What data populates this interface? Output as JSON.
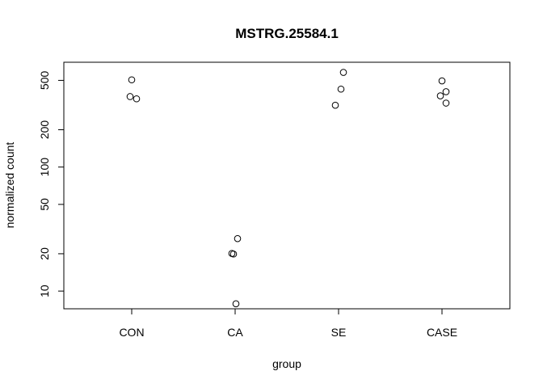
{
  "chart_data": {
    "type": "scatter",
    "title": "MSTRG.25584.1",
    "xlabel": "group",
    "ylabel": "normalized count",
    "y_scale": "log",
    "ylim": [
      7.2,
      700
    ],
    "y_ticks": [
      10,
      20,
      50,
      100,
      200,
      500
    ],
    "y_tick_labels": [
      "10",
      "20",
      "50",
      "100",
      "200",
      "500"
    ],
    "categories": [
      "CON",
      "CA",
      "SE",
      "CASE"
    ],
    "grid": false,
    "legend": "none",
    "series": [
      {
        "points": [
          {
            "group": "CON",
            "y": 505
          },
          {
            "group": "CON",
            "y": 370
          },
          {
            "group": "CON",
            "y": 355
          },
          {
            "group": "CA",
            "y": 26.5
          },
          {
            "group": "CA",
            "y": 20.1
          },
          {
            "group": "CA",
            "y": 19.9
          },
          {
            "group": "CA",
            "y": 7.9
          },
          {
            "group": "SE",
            "y": 580
          },
          {
            "group": "SE",
            "y": 425
          },
          {
            "group": "SE",
            "y": 315
          },
          {
            "group": "CASE",
            "y": 495
          },
          {
            "group": "CASE",
            "y": 405
          },
          {
            "group": "CASE",
            "y": 375
          },
          {
            "group": "CASE",
            "y": 328
          }
        ]
      }
    ]
  }
}
